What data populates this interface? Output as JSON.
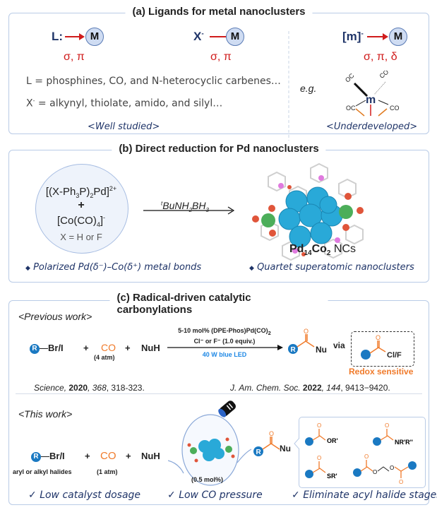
{
  "panel_a": {
    "title": "(a) Ligands for metal nanoclusters",
    "L_label": "L:",
    "X_label": "X",
    "X_sup": "-",
    "m_label": "[m]",
    "m_sup": "-",
    "metal": "M",
    "bond_L": "σ, π",
    "bond_X": "σ, π",
    "bond_m": "σ, π, δ",
    "L_def": "L = phosphines, CO, and N-heterocyclic carbenes…",
    "X_def_prefix": "X",
    "X_def": " = alkynyl, thiolate, amido, and silyl…",
    "eg": "e.g.",
    "complex_center": "m",
    "co": "CO",
    "oc": "OC",
    "well_studied": "<Well studied>",
    "underdeveloped": "<Underdeveloped>"
  },
  "panel_b": {
    "title": "(b) Direct reduction for Pd nanoclusters",
    "reagent1": "[(X-Ph3P)2Pd]2+",
    "plus": "+",
    "reagent2": "[Co(CO)4]-",
    "x_def": "X = H or F",
    "reductant": "tBuNH2BH3",
    "product_pd": "Pd",
    "product_pd_sub": "14",
    "product_co": "Co",
    "product_co_sub": "2",
    "product_suffix": " NCs",
    "bullet1": "Polarized Pd(δ⁻)–Co(δ⁺) metal bonds",
    "bullet2": "Quartet superatomic nanoclusters"
  },
  "panel_c": {
    "title": "(c) Radical-driven catalytic carbonylations",
    "previous_work": "<Previous work>",
    "r": "R",
    "halide": "Br/I",
    "plus": "+",
    "co": "CO",
    "co_pressure_prev": "(4 atm)",
    "nuh": "NuH",
    "cond1": "5-10 mol% (DPE-Phos)Pd(CO)2",
    "cond2": "Cl⁻ or F⁻ (1.0 equiv.)",
    "cond3": "40 W blue LED",
    "nu": "Nu",
    "o": "O",
    "via": "via",
    "acyl_halide": "Cl/F",
    "redox": "Redox sensitive",
    "cite1_journal": "Science, ",
    "cite1_year": "2020",
    "cite1_vol": ", 368",
    "cite1_pages": ", 318-323.",
    "cite2_journal": "J. Am. Chem. Soc. ",
    "cite2_year": "2022",
    "cite2_vol": ", 144",
    "cite2_pages": ", 9413−9420.",
    "this_work": "<This work>",
    "halide_desc": "aryl or alkyl halides",
    "co_pressure_this": "(1 atm)",
    "catalyst_loading": "(0.5 mol%)",
    "products": [
      "OR'",
      "NR'R''",
      "SR'"
    ],
    "check1": "Low catalyst dosage",
    "check2": "Low CO pressure",
    "check3": "Eliminate acyl halide stages"
  },
  "colors": {
    "navy": "#1f3468",
    "red": "#d01c1c",
    "orange": "#f07a2a",
    "blue": "#1e88e5",
    "r_badge": "#1a79c2",
    "cluster": "#29a9d8",
    "border": "#b9cbe6"
  }
}
